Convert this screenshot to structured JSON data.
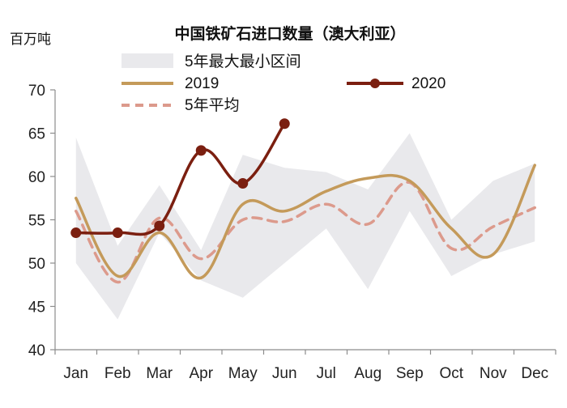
{
  "chart_data": {
    "type": "line",
    "title": "中国铁矿石进口数量（澳大利亚）",
    "ylabel": "百万吨",
    "xlabel": "",
    "categories": [
      "Jan",
      "Feb",
      "Mar",
      "Apr",
      "May",
      "Jun",
      "Jul",
      "Aug",
      "Sep",
      "Oct",
      "Nov",
      "Dec"
    ],
    "ylim": [
      40,
      70
    ],
    "yticks": [
      40,
      45,
      50,
      55,
      60,
      65,
      70
    ],
    "grid": false,
    "legend_position": "top",
    "band": {
      "name": "5年最大最小区间",
      "color": "#e9e9ec",
      "max": [
        64.5,
        52.0,
        59.0,
        51.5,
        62.5,
        61.0,
        60.5,
        58.5,
        65.0,
        55.0,
        59.5,
        61.5
      ],
      "min": [
        50.0,
        43.5,
        53.5,
        48.0,
        46.0,
        50.0,
        54.0,
        47.0,
        56.0,
        48.5,
        51.0,
        52.5
      ]
    },
    "series": [
      {
        "name": "2019",
        "color": "#c49a5a",
        "style": "solid",
        "values": [
          57.5,
          48.5,
          53.5,
          48.3,
          56.8,
          56.0,
          58.3,
          59.8,
          59.5,
          54.0,
          51.0,
          61.3
        ]
      },
      {
        "name": "2020",
        "color": "#7b1f10",
        "style": "solid-markers",
        "values": [
          53.5,
          53.5,
          54.3,
          63.0,
          59.2,
          66.1,
          null,
          null,
          null,
          null,
          null,
          null
        ]
      },
      {
        "name": "5年平均",
        "color": "#dc9a8c",
        "style": "dashed",
        "values": [
          56.0,
          47.8,
          55.2,
          50.5,
          55.0,
          54.8,
          56.8,
          54.5,
          59.3,
          51.7,
          54.2,
          56.4
        ]
      }
    ]
  }
}
